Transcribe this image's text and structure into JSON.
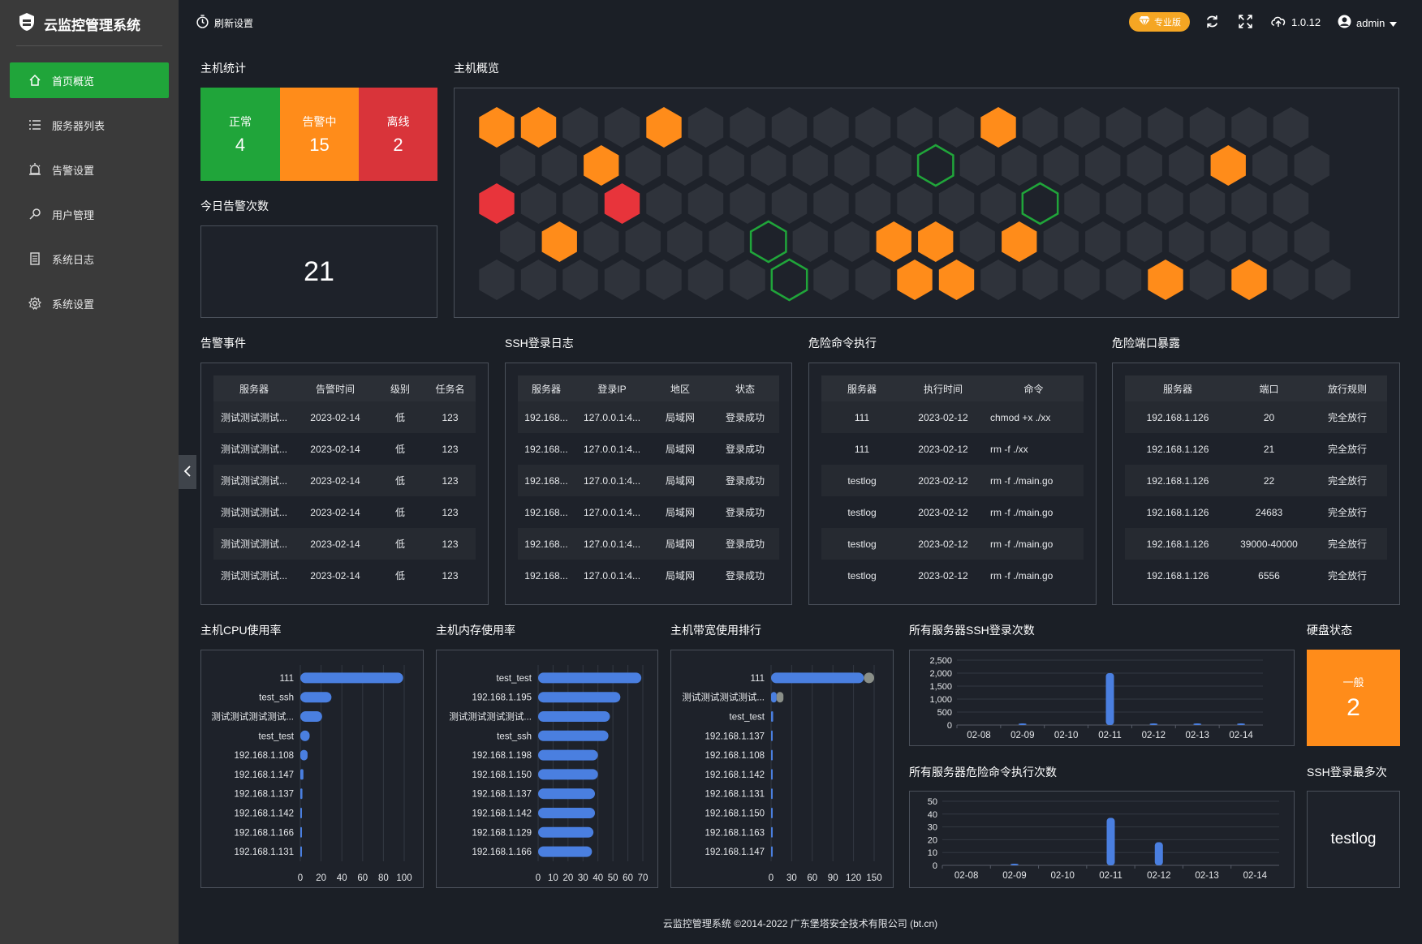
{
  "app": {
    "title": "云监控管理系统",
    "footer": "云监控管理系统 ©2014-2022 广东堡塔安全技术有限公司 (bt.cn)"
  },
  "sidebar": {
    "items": [
      {
        "label": "首页概览",
        "icon": "home-icon",
        "active": true
      },
      {
        "label": "服务器列表",
        "icon": "list-icon",
        "active": false
      },
      {
        "label": "告警设置",
        "icon": "alarm-icon",
        "active": false
      },
      {
        "label": "用户管理",
        "icon": "user-key-icon",
        "active": false
      },
      {
        "label": "系统日志",
        "icon": "log-icon",
        "active": false
      },
      {
        "label": "系统设置",
        "icon": "gear-icon",
        "active": false
      }
    ]
  },
  "header": {
    "refresh_label": "刷新设置",
    "badge": "专业版",
    "version": "1.0.12",
    "user": "admin"
  },
  "host_stats": {
    "title": "主机统计",
    "normal_label": "正常",
    "normal_value": "4",
    "alarm_label": "告警中",
    "alarm_value": "15",
    "offline_label": "离线",
    "offline_value": "2"
  },
  "today_alarms": {
    "title": "今日告警次数",
    "value": "21"
  },
  "host_overview": {
    "title": "主机概览",
    "colors": {
      "idle": "#2f333b",
      "alarm": "#ff8c1a",
      "offline": "#e8343b",
      "normal": "#20a53a"
    },
    "rows": [
      [
        "alarm",
        "alarm",
        "idle",
        "idle",
        "alarm",
        "idle",
        "idle",
        "idle",
        "idle",
        "idle",
        "idle",
        "idle",
        "alarm",
        "idle",
        "idle",
        "idle",
        "idle",
        "idle",
        "idle",
        "idle"
      ],
      [
        "idle",
        "idle",
        "alarm",
        "idle",
        "idle",
        "idle",
        "idle",
        "idle",
        "idle",
        "idle",
        "normal",
        "idle",
        "idle",
        "idle",
        "idle",
        "idle",
        "idle",
        "alarm",
        "idle",
        "idle"
      ],
      [
        "offline",
        "idle",
        "idle",
        "offline",
        "idle",
        "idle",
        "idle",
        "idle",
        "idle",
        "idle",
        "idle",
        "idle",
        "idle",
        "normal",
        "idle",
        "idle",
        "idle",
        "idle",
        "idle",
        "idle"
      ],
      [
        "idle",
        "alarm",
        "idle",
        "idle",
        "idle",
        "idle",
        "normal",
        "idle",
        "idle",
        "alarm",
        "alarm",
        "idle",
        "alarm",
        "idle",
        "idle",
        "idle",
        "idle",
        "idle",
        "idle",
        "idle"
      ],
      [
        "idle",
        "idle",
        "idle",
        "idle",
        "idle",
        "idle",
        "idle",
        "normal",
        "idle",
        "idle",
        "alarm",
        "alarm",
        "idle",
        "idle",
        "idle",
        "idle",
        "alarm",
        "idle",
        "alarm",
        "idle",
        "idle"
      ]
    ]
  },
  "alarm_events": {
    "title": "告警事件",
    "headers": [
      "服务器",
      "告警时间",
      "级别",
      "任务名"
    ],
    "rows": [
      [
        "测试测试测试...",
        "2023-02-14",
        "低",
        "123"
      ],
      [
        "测试测试测试...",
        "2023-02-14",
        "低",
        "123"
      ],
      [
        "测试测试测试...",
        "2023-02-14",
        "低",
        "123"
      ],
      [
        "测试测试测试...",
        "2023-02-14",
        "低",
        "123"
      ],
      [
        "测试测试测试...",
        "2023-02-14",
        "低",
        "123"
      ],
      [
        "测试测试测试...",
        "2023-02-14",
        "低",
        "123"
      ]
    ]
  },
  "ssh_log": {
    "title": "SSH登录日志",
    "headers": [
      "服务器",
      "登录IP",
      "地区",
      "状态"
    ],
    "rows": [
      [
        "192.168...",
        "127.0.0.1:4...",
        "局域网",
        "登录成功"
      ],
      [
        "192.168...",
        "127.0.0.1:4...",
        "局域网",
        "登录成功"
      ],
      [
        "192.168...",
        "127.0.0.1:4...",
        "局域网",
        "登录成功"
      ],
      [
        "192.168...",
        "127.0.0.1:4...",
        "局域网",
        "登录成功"
      ],
      [
        "192.168...",
        "127.0.0.1:4...",
        "局域网",
        "登录成功"
      ],
      [
        "192.168...",
        "127.0.0.1:4...",
        "局域网",
        "登录成功"
      ]
    ]
  },
  "danger_cmd": {
    "title": "危险命令执行",
    "headers": [
      "服务器",
      "执行时间",
      "命令"
    ],
    "rows": [
      [
        "111",
        "2023-02-12",
        "chmod +x ./xx"
      ],
      [
        "111",
        "2023-02-12",
        "rm -f ./xx"
      ],
      [
        "testlog",
        "2023-02-12",
        "rm -f ./main.go"
      ],
      [
        "testlog",
        "2023-02-12",
        "rm -f ./main.go"
      ],
      [
        "testlog",
        "2023-02-12",
        "rm -f ./main.go"
      ],
      [
        "testlog",
        "2023-02-12",
        "rm -f ./main.go"
      ]
    ]
  },
  "danger_port": {
    "title": "危险端口暴露",
    "headers": [
      "服务器",
      "端口",
      "放行规则"
    ],
    "rows": [
      [
        "192.168.1.126",
        "20",
        "完全放行"
      ],
      [
        "192.168.1.126",
        "21",
        "完全放行"
      ],
      [
        "192.168.1.126",
        "22",
        "完全放行"
      ],
      [
        "192.168.1.126",
        "24683",
        "完全放行"
      ],
      [
        "192.168.1.126",
        "39000-40000",
        "完全放行"
      ],
      [
        "192.168.1.126",
        "6556",
        "完全放行"
      ]
    ]
  },
  "disk": {
    "title": "硬盘状态",
    "label": "一般",
    "value": "2"
  },
  "ssh_most": {
    "title": "SSH登录最多次",
    "value": "testlog"
  },
  "chart_data": [
    {
      "type": "bar",
      "orientation": "horizontal",
      "title": "主机CPU使用率",
      "categories": [
        "111",
        "test_ssh",
        "测试测试测试测试...",
        "test_test",
        "192.168.1.108",
        "192.168.1.147",
        "192.168.1.137",
        "192.168.1.142",
        "192.168.1.166",
        "192.168.1.131"
      ],
      "values": [
        99,
        30,
        21,
        9,
        7,
        3,
        2,
        1,
        0.5,
        0.3
      ],
      "xlim": [
        0,
        100
      ],
      "xticks": [
        "0",
        "20",
        "40",
        "60",
        "80",
        "100"
      ],
      "color": "#4a7fe0"
    },
    {
      "type": "bar",
      "orientation": "horizontal",
      "title": "主机内存使用率",
      "categories": [
        "test_test",
        "192.168.1.195",
        "测试测试测试测试...",
        "test_ssh",
        "192.168.1.198",
        "192.168.1.150",
        "192.168.1.137",
        "192.168.1.142",
        "192.168.1.129",
        "192.168.1.166"
      ],
      "values": [
        69,
        55,
        48,
        47,
        40,
        40,
        38,
        38,
        37,
        36
      ],
      "xlim": [
        0,
        70
      ],
      "xticks": [
        "0",
        "10",
        "20",
        "30",
        "40",
        "50",
        "60",
        "70"
      ],
      "color": "#4a7fe0"
    },
    {
      "type": "bar",
      "orientation": "horizontal",
      "stacked": true,
      "title": "主机带宽使用排行",
      "categories": [
        "111",
        "测试测试测试测试...",
        "test_test",
        "192.168.1.137",
        "192.168.1.108",
        "192.168.1.142",
        "192.168.1.131",
        "192.168.1.150",
        "192.168.1.163",
        "192.168.1.147"
      ],
      "series": [
        {
          "values": [
            135,
            8,
            3,
            2,
            1,
            1,
            1,
            1,
            1,
            1
          ],
          "color": "#4a7fe0"
        },
        {
          "values": [
            15,
            10,
            0,
            0,
            0,
            0,
            0,
            0,
            0,
            0
          ],
          "color": "#8a8f88"
        }
      ],
      "xlim": [
        0,
        150
      ],
      "xticks": [
        "0",
        "30",
        "60",
        "90",
        "120",
        "150"
      ]
    },
    {
      "type": "bar",
      "title": "所有服务器SSH登录次数",
      "categories": [
        "02-08",
        "02-09",
        "02-10",
        "02-11",
        "02-12",
        "02-13",
        "02-14"
      ],
      "values": [
        0,
        25,
        0,
        2000,
        10,
        20,
        15
      ],
      "ylim": [
        0,
        2500
      ],
      "yticks": [
        "0",
        "500",
        "1,000",
        "1,500",
        "2,000",
        "2,500"
      ],
      "color": "#4a7fe0"
    },
    {
      "type": "bar",
      "title": "所有服务器危险命令执行次数",
      "categories": [
        "02-08",
        "02-09",
        "02-10",
        "02-11",
        "02-12",
        "02-13",
        "02-14"
      ],
      "values": [
        0,
        1,
        0,
        37,
        18,
        0,
        0
      ],
      "ylim": [
        0,
        50
      ],
      "yticks": [
        "0",
        "10",
        "20",
        "30",
        "40",
        "50"
      ],
      "color": "#4a7fe0"
    }
  ]
}
